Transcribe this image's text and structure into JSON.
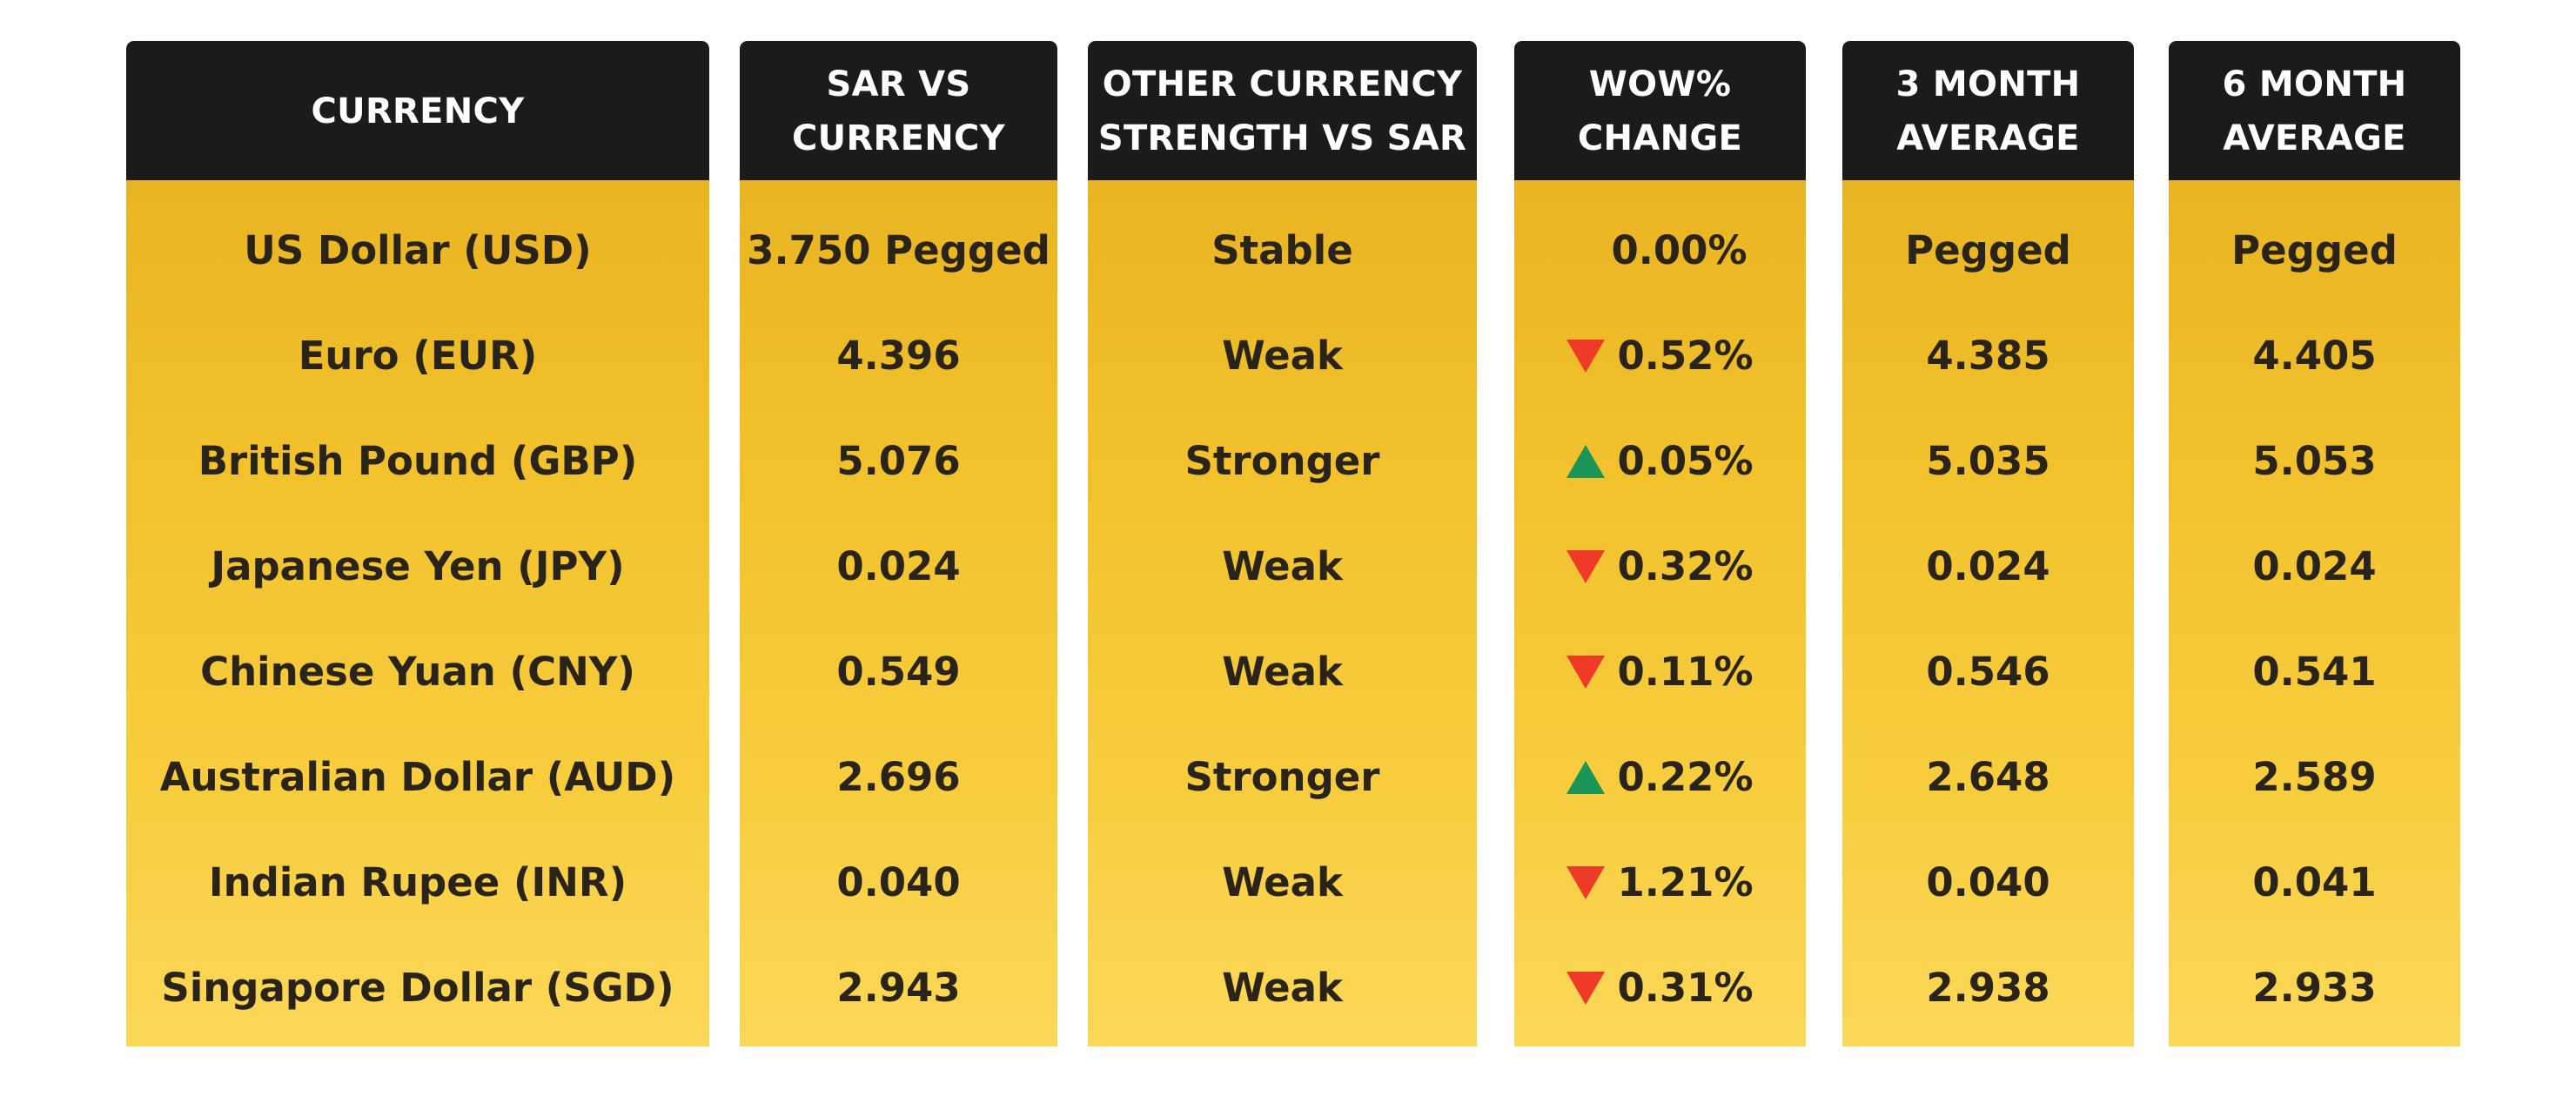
{
  "columns": {
    "currency": {
      "header": [
        "CURRENCY"
      ]
    },
    "sar_vs_currency": {
      "header": [
        "SAR VS",
        "CURRENCY"
      ]
    },
    "strength": {
      "header": [
        "OTHER CURRENCY",
        "STRENGTH VS SAR"
      ]
    },
    "wow": {
      "header": [
        "WOW%",
        "CHANGE"
      ]
    },
    "avg3": {
      "header": [
        "3 MONTH",
        "AVERAGE"
      ]
    },
    "avg6": {
      "header": [
        "6 MONTH",
        "AVERAGE"
      ]
    }
  },
  "colors": {
    "header_bg": "#1c1b19",
    "header_text": "#ffffff",
    "cell_bg_top": "#e9b421",
    "cell_bg_bottom": "#fbd858",
    "down_arrow": "#ee3a26",
    "up_arrow": "#1a9457"
  },
  "rows": [
    {
      "currency": "US Dollar (USD)",
      "sar_vs_currency": "3.750 Pegged",
      "strength": "Stable",
      "wow_direction": "none",
      "wow": "0.00%",
      "avg3": "Pegged",
      "avg6": "Pegged"
    },
    {
      "currency": "Euro (EUR)",
      "sar_vs_currency": "4.396",
      "strength": "Weak",
      "wow_direction": "down",
      "wow": "0.52%",
      "avg3": "4.385",
      "avg6": "4.405"
    },
    {
      "currency": "British Pound (GBP)",
      "sar_vs_currency": "5.076",
      "strength": "Stronger",
      "wow_direction": "up",
      "wow": "0.05%",
      "avg3": "5.035",
      "avg6": "5.053"
    },
    {
      "currency": "Japanese Yen (JPY)",
      "sar_vs_currency": "0.024",
      "strength": "Weak",
      "wow_direction": "down",
      "wow": "0.32%",
      "avg3": "0.024",
      "avg6": "0.024"
    },
    {
      "currency": "Chinese Yuan (CNY)",
      "sar_vs_currency": "0.549",
      "strength": "Weak",
      "wow_direction": "down",
      "wow": "0.11%",
      "avg3": "0.546",
      "avg6": "0.541"
    },
    {
      "currency": "Australian Dollar (AUD)",
      "sar_vs_currency": "2.696",
      "strength": "Stronger",
      "wow_direction": "up",
      "wow": "0.22%",
      "avg3": "2.648",
      "avg6": "2.589"
    },
    {
      "currency": "Indian Rupee (INR)",
      "sar_vs_currency": "0.040",
      "strength": "Weak",
      "wow_direction": "down",
      "wow": "1.21%",
      "avg3": "0.040",
      "avg6": "0.041"
    },
    {
      "currency": "Singapore Dollar (SGD)",
      "sar_vs_currency": "2.943",
      "strength": "Weak",
      "wow_direction": "down",
      "wow": "0.31%",
      "avg3": "2.938",
      "avg6": "2.933"
    }
  ]
}
